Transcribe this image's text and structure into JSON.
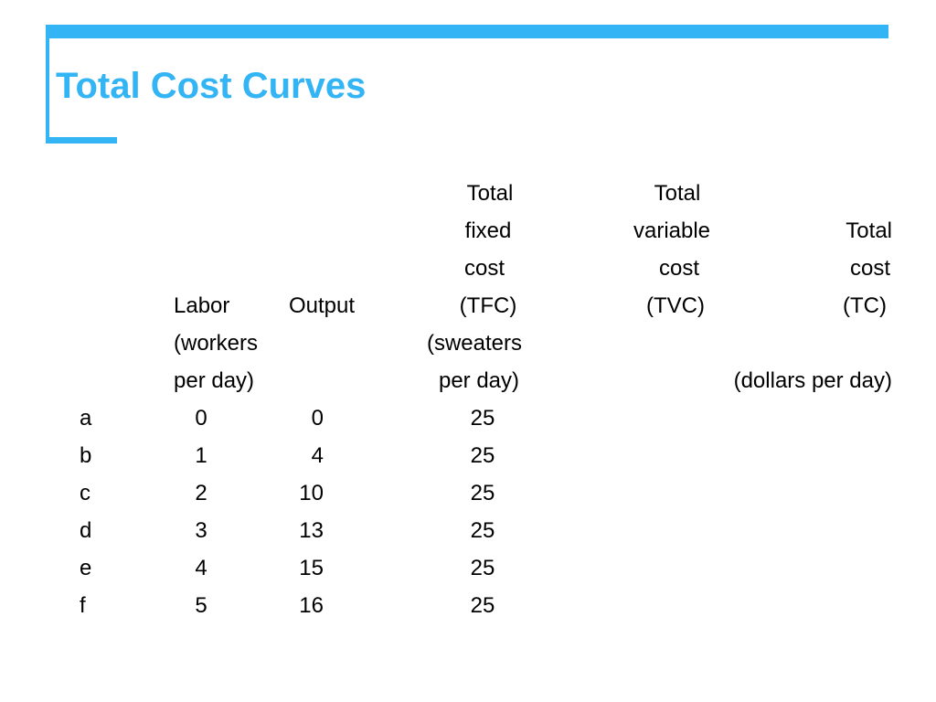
{
  "slide": {
    "title": "Total Cost Curves",
    "accent_color": "#33b5f5"
  },
  "table": {
    "headers": {
      "tfc": [
        "Total",
        "fixed",
        "cost",
        "(TFC)"
      ],
      "tvc": [
        "Total",
        "variable",
        "cost",
        "(TVC)"
      ],
      "tc": [
        "Total",
        "cost",
        "(TC)"
      ],
      "labor": [
        "Labor",
        "(workers",
        "per day)"
      ],
      "output": "Output",
      "output_units": [
        "(sweaters",
        "per day)"
      ],
      "cost_units": "(dollars per day)"
    },
    "rows": [
      {
        "label": "a",
        "labor": "0",
        "output": "0",
        "tfc": "25"
      },
      {
        "label": "b",
        "labor": "1",
        "output": "4",
        "tfc": "25"
      },
      {
        "label": "c",
        "labor": "2",
        "output": "10",
        "tfc": "25"
      },
      {
        "label": "d",
        "labor": "3",
        "output": "13",
        "tfc": "25"
      },
      {
        "label": "e",
        "labor": "4",
        "output": "15",
        "tfc": "25"
      },
      {
        "label": "f",
        "labor": "5",
        "output": "16",
        "tfc": "25"
      }
    ]
  }
}
